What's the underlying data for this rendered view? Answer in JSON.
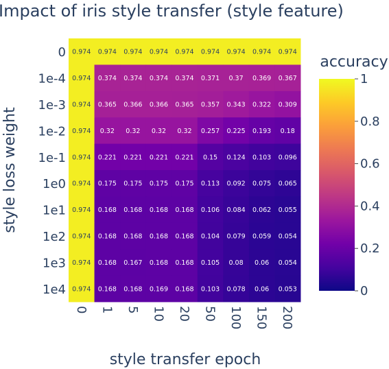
{
  "chart_data": {
    "type": "heatmap",
    "title": "Impact of iris style transfer (style feature)",
    "xlabel": "style transfer epoch",
    "ylabel": "style loss weight",
    "x": [
      "0",
      "1",
      "5",
      "10",
      "20",
      "50",
      "100",
      "150",
      "200"
    ],
    "y": [
      "0",
      "1e-4",
      "1e-3",
      "1e-2",
      "1e-1",
      "1e0",
      "1e1",
      "1e2",
      "1e3",
      "1e4"
    ],
    "z": [
      [
        0.974,
        0.974,
        0.974,
        0.974,
        0.974,
        0.974,
        0.974,
        0.974,
        0.974
      ],
      [
        0.974,
        0.374,
        0.374,
        0.374,
        0.374,
        0.371,
        0.37,
        0.369,
        0.367
      ],
      [
        0.974,
        0.365,
        0.366,
        0.366,
        0.365,
        0.357,
        0.343,
        0.322,
        0.309
      ],
      [
        0.974,
        0.32,
        0.32,
        0.32,
        0.32,
        0.257,
        0.225,
        0.193,
        0.18
      ],
      [
        0.974,
        0.221,
        0.221,
        0.221,
        0.221,
        0.15,
        0.124,
        0.103,
        0.096
      ],
      [
        0.974,
        0.175,
        0.175,
        0.175,
        0.175,
        0.113,
        0.092,
        0.075,
        0.065
      ],
      [
        0.974,
        0.168,
        0.168,
        0.168,
        0.168,
        0.106,
        0.084,
        0.062,
        0.055
      ],
      [
        0.974,
        0.168,
        0.168,
        0.168,
        0.168,
        0.104,
        0.079,
        0.059,
        0.054
      ],
      [
        0.974,
        0.168,
        0.167,
        0.168,
        0.168,
        0.105,
        0.08,
        0.06,
        0.054
      ],
      [
        0.974,
        0.168,
        0.168,
        0.169,
        0.168,
        0.103,
        0.078,
        0.06,
        0.053
      ]
    ],
    "colorscale": "plasma",
    "zlim": [
      0,
      1
    ],
    "colorbar": {
      "title": "accuracy",
      "ticks": [
        "0",
        "0.2",
        "0.4",
        "0.6",
        "0.8",
        "1"
      ],
      "tick_values": [
        0,
        0.2,
        0.4,
        0.6,
        0.8,
        1
      ]
    }
  }
}
